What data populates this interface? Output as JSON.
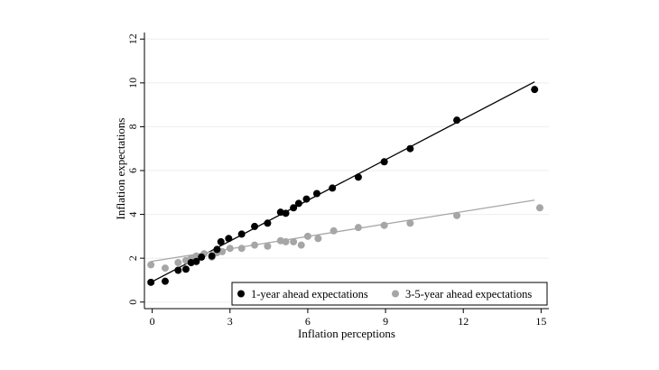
{
  "chart_data": {
    "type": "scatter",
    "title": "",
    "xlabel": "Inflation perceptions",
    "ylabel": "Inflation expectations",
    "xlim": [
      -0.3,
      15.3
    ],
    "ylim": [
      -0.3,
      12.3
    ],
    "xticks": [
      0,
      3,
      6,
      9,
      12,
      15
    ],
    "yticks": [
      0,
      2,
      4,
      6,
      8,
      10,
      12
    ],
    "grid": "horizontal",
    "legend_position": "bottom-right",
    "series": [
      {
        "name": "1-year ahead expectations",
        "color": "#000000",
        "x": [
          -0.05,
          0.5,
          1.0,
          1.3,
          1.5,
          1.7,
          1.9,
          2.3,
          2.5,
          2.65,
          2.95,
          3.45,
          3.95,
          4.45,
          4.95,
          5.15,
          5.45,
          5.65,
          5.95,
          6.35,
          6.95,
          7.95,
          8.95,
          9.95,
          11.75,
          14.75
        ],
        "y": [
          0.9,
          0.95,
          1.45,
          1.5,
          1.8,
          1.85,
          2.05,
          2.1,
          2.4,
          2.75,
          2.9,
          3.1,
          3.45,
          3.6,
          4.1,
          4.05,
          4.3,
          4.5,
          4.7,
          4.95,
          5.2,
          5.7,
          6.4,
          7.0,
          8.3,
          9.7
        ],
        "fit": {
          "x": [
            -0.05,
            14.75
          ],
          "y": [
            0.9,
            10.05
          ]
        }
      },
      {
        "name": "3-5-year ahead expectations",
        "color": "#a6a6a6",
        "x": [
          -0.05,
          0.5,
          1.0,
          1.3,
          1.5,
          1.7,
          2.0,
          2.3,
          2.5,
          2.7,
          3.0,
          3.45,
          3.95,
          4.45,
          4.95,
          5.15,
          5.45,
          5.75,
          6.0,
          6.4,
          7.0,
          7.95,
          8.95,
          9.95,
          11.75,
          14.95
        ],
        "y": [
          1.7,
          1.55,
          1.8,
          1.9,
          2.0,
          2.1,
          2.2,
          2.05,
          2.25,
          2.3,
          2.45,
          2.45,
          2.6,
          2.55,
          2.8,
          2.75,
          2.75,
          2.6,
          3.0,
          2.9,
          3.25,
          3.4,
          3.5,
          3.6,
          3.95,
          4.3
        ],
        "fit": {
          "x": [
            -0.05,
            14.75
          ],
          "y": [
            1.85,
            4.65
          ]
        }
      }
    ]
  }
}
